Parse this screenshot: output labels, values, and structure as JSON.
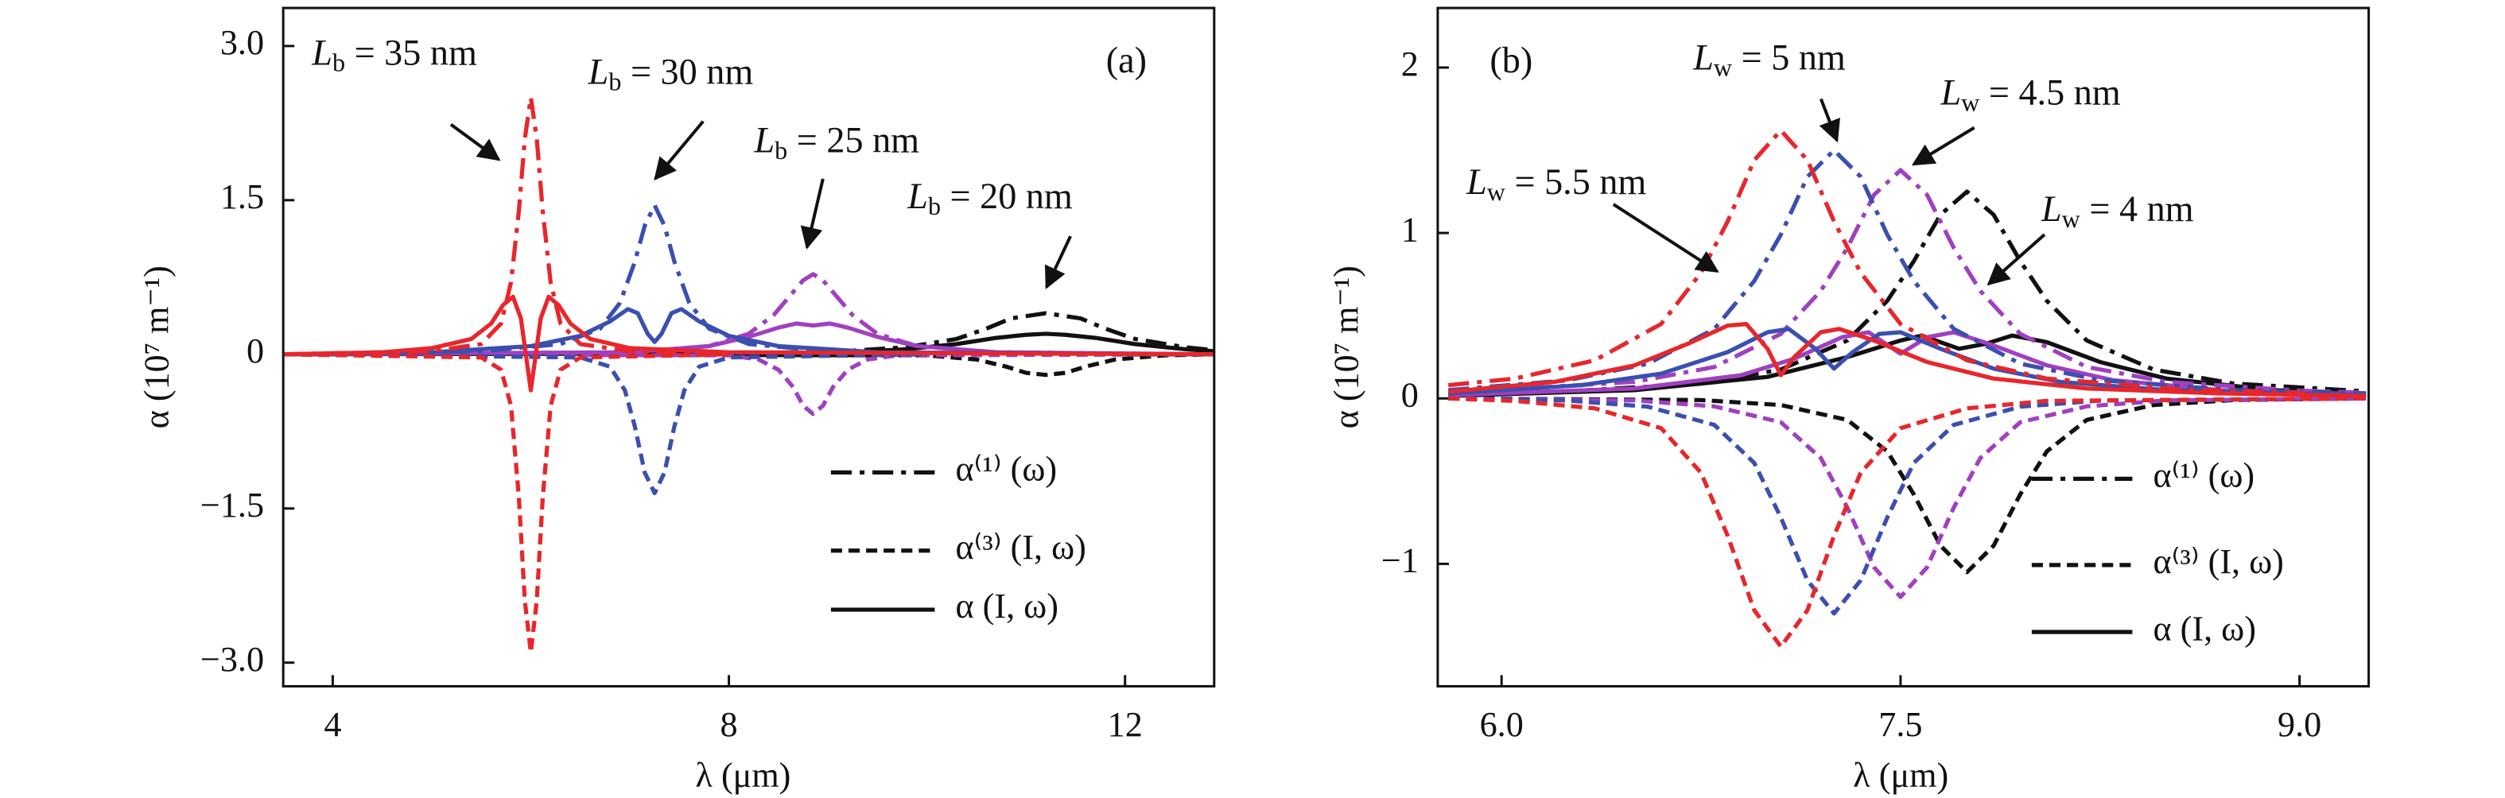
{
  "chart_data": [
    {
      "type": "line",
      "panel_label": "(a)",
      "xlabel": "λ (μm)",
      "ylabel": "α (10⁷ m⁻¹)",
      "xlim": [
        3.5,
        12.9
      ],
      "ylim": [
        -3.23,
        3.37
      ],
      "xticks": [
        4,
        8,
        12
      ],
      "yticks": [
        {
          "value": 3,
          "label": "3.0"
        },
        {
          "value": 1.5,
          "label": "1.5"
        },
        0,
        {
          "value": -1.5,
          "label": "−1.5"
        },
        {
          "value": -3,
          "label": "−3.0"
        }
      ],
      "legend": [
        {
          "label": "α⁽¹⁾ (ω)",
          "style": "dashdot"
        },
        {
          "label": "α⁽³⁾ (I, ω)",
          "style": "dashed"
        },
        {
          "label": "α (I, ω)",
          "style": "solid"
        }
      ],
      "annotations": [
        {
          "symbol": "L",
          "subscript": "b",
          "text": " = 35 nm"
        },
        {
          "symbol": "L",
          "subscript": "b",
          "text": " = 30 nm"
        },
        {
          "symbol": "L",
          "subscript": "b",
          "text": " = 25 nm"
        },
        {
          "symbol": "L",
          "subscript": "b",
          "text": " = 20 nm"
        }
      ],
      "series": [
        {
          "color": "#111111",
          "style": "dashdot",
          "x": [
            3.5,
            9.0,
            9.8,
            10.3,
            10.6,
            10.85,
            11.2,
            11.55,
            11.8,
            12.1,
            12.6,
            12.9
          ],
          "values": [
            0,
            0.02,
            0.07,
            0.15,
            0.25,
            0.35,
            0.4,
            0.35,
            0.25,
            0.15,
            0.07,
            0.04
          ]
        },
        {
          "color": "#111111",
          "style": "dashed",
          "x": [
            3.5,
            10.0,
            10.5,
            10.8,
            11.0,
            11.2,
            11.4,
            11.6,
            11.9,
            12.4,
            12.9
          ],
          "values": [
            0,
            -0.01,
            -0.05,
            -0.12,
            -0.18,
            -0.2,
            -0.18,
            -0.12,
            -0.05,
            -0.01,
            0
          ]
        },
        {
          "color": "#111111",
          "style": "solid",
          "x": [
            3.5,
            9.0,
            9.8,
            10.3,
            10.7,
            11.0,
            11.2,
            11.4,
            11.7,
            12.1,
            12.6,
            12.9
          ],
          "values": [
            0,
            0.01,
            0.05,
            0.1,
            0.16,
            0.19,
            0.2,
            0.19,
            0.16,
            0.1,
            0.05,
            0.03
          ]
        },
        {
          "color": "#a040c0",
          "style": "dashdot",
          "x": [
            3.5,
            7.0,
            7.8,
            8.2,
            8.45,
            8.6,
            8.75,
            8.85,
            8.95,
            9.1,
            9.25,
            9.5,
            9.9,
            10.7,
            12.9
          ],
          "values": [
            0,
            0.02,
            0.08,
            0.2,
            0.38,
            0.55,
            0.72,
            0.78,
            0.72,
            0.55,
            0.38,
            0.2,
            0.08,
            0.02,
            0
          ]
        },
        {
          "color": "#a040c0",
          "style": "dashed",
          "x": [
            3.5,
            8.0,
            8.3,
            8.5,
            8.65,
            8.75,
            8.85,
            8.95,
            9.05,
            9.2,
            9.4,
            9.7,
            12.9
          ],
          "values": [
            0,
            -0.01,
            -0.05,
            -0.15,
            -0.32,
            -0.5,
            -0.58,
            -0.5,
            -0.32,
            -0.15,
            -0.05,
            -0.01,
            0
          ]
        },
        {
          "color": "#a040c0",
          "style": "solid",
          "x": [
            3.5,
            7.0,
            7.8,
            8.2,
            8.5,
            8.68,
            8.85,
            9.02,
            9.2,
            9.5,
            9.9,
            10.7,
            12.9
          ],
          "values": [
            0,
            0.02,
            0.08,
            0.17,
            0.26,
            0.3,
            0.28,
            0.3,
            0.26,
            0.17,
            0.08,
            0.02,
            0
          ]
        },
        {
          "color": "#3a4fb0",
          "style": "dashdot",
          "x": [
            3.5,
            5.5,
            6.3,
            6.7,
            6.9,
            7.05,
            7.15,
            7.25,
            7.35,
            7.45,
            7.6,
            7.8,
            8.2,
            9.0,
            10.0
          ],
          "values": [
            0,
            0.03,
            0.1,
            0.25,
            0.5,
            0.9,
            1.25,
            1.45,
            1.25,
            0.9,
            0.5,
            0.25,
            0.1,
            0.03,
            0
          ]
        },
        {
          "color": "#3a4fb0",
          "style": "dashed",
          "x": [
            3.5,
            6.5,
            6.8,
            6.95,
            7.05,
            7.15,
            7.25,
            7.35,
            7.45,
            7.55,
            7.7,
            8.0,
            10.0
          ],
          "values": [
            0,
            -0.03,
            -0.12,
            -0.35,
            -0.7,
            -1.15,
            -1.35,
            -1.15,
            -0.7,
            -0.35,
            -0.12,
            -0.03,
            0
          ]
        },
        {
          "color": "#3a4fb0",
          "style": "solid",
          "x": [
            3.5,
            5.0,
            6.0,
            6.5,
            6.8,
            6.98,
            7.08,
            7.18,
            7.25,
            7.32,
            7.42,
            7.52,
            7.7,
            8.0,
            8.5,
            9.5,
            12.9
          ],
          "values": [
            0,
            0.02,
            0.08,
            0.18,
            0.32,
            0.44,
            0.4,
            0.2,
            0.12,
            0.2,
            0.4,
            0.44,
            0.32,
            0.18,
            0.08,
            0.02,
            0
          ]
        },
        {
          "color": "#e8262b",
          "style": "dashdot",
          "x": [
            3.5,
            5.0,
            5.5,
            5.7,
            5.8,
            5.88,
            5.94,
            6.0,
            6.06,
            6.12,
            6.2,
            6.3,
            6.5,
            7.0,
            8.0
          ],
          "values": [
            0,
            0.03,
            0.1,
            0.3,
            0.7,
            1.4,
            2.1,
            2.5,
            2.1,
            1.4,
            0.7,
            0.3,
            0.1,
            0.03,
            0
          ]
        },
        {
          "color": "#e8262b",
          "style": "dashed",
          "x": [
            3.5,
            5.5,
            5.7,
            5.8,
            5.88,
            5.94,
            6.0,
            6.06,
            6.12,
            6.2,
            6.3,
            6.5,
            8.0
          ],
          "values": [
            0,
            -0.03,
            -0.15,
            -0.5,
            -1.4,
            -2.4,
            -2.9,
            -2.4,
            -1.4,
            -0.5,
            -0.15,
            -0.03,
            0
          ]
        },
        {
          "color": "#e8262b",
          "style": "solid",
          "x": [
            3.5,
            4.5,
            5.0,
            5.4,
            5.6,
            5.72,
            5.82,
            5.9,
            5.95,
            6.0,
            6.05,
            6.1,
            6.18,
            6.28,
            6.4,
            6.6,
            7.0,
            8.0,
            12.9
          ],
          "values": [
            0,
            0.02,
            0.06,
            0.15,
            0.3,
            0.48,
            0.56,
            0.35,
            0,
            -0.35,
            0,
            0.35,
            0.56,
            0.48,
            0.3,
            0.15,
            0.06,
            0.02,
            0
          ]
        }
      ]
    },
    {
      "type": "line",
      "panel_label": "(b)",
      "xlabel": "λ (μm)",
      "ylabel": "α (10⁷ m⁻¹)",
      "xlim": [
        5.76,
        9.26
      ],
      "ylim": [
        -1.74,
        2.36
      ],
      "xticks": [
        {
          "value": 6,
          "label": "6.0"
        },
        {
          "value": 7.5,
          "label": "7.5"
        },
        {
          "value": 9,
          "label": "9.0"
        }
      ],
      "yticks": [
        2,
        1,
        0,
        {
          "value": -1,
          "label": "−1"
        }
      ],
      "legend": [
        {
          "label": "α⁽¹⁾ (ω)",
          "style": "dashdot"
        },
        {
          "label": "α⁽³⁾ (I, ω)",
          "style": "dashed"
        },
        {
          "label": "α (I, ω)",
          "style": "solid"
        }
      ],
      "annotations": [
        {
          "symbol": "L",
          "subscript": "w",
          "text": " = 5 nm"
        },
        {
          "symbol": "L",
          "subscript": "w",
          "text": " = 4.5 nm"
        },
        {
          "symbol": "L",
          "subscript": "w",
          "text": " = 5.5 nm"
        },
        {
          "symbol": "L",
          "subscript": "w",
          "text": " = 4 nm"
        }
      ],
      "series": [
        {
          "color": "#111111",
          "style": "dashdot",
          "x": [
            5.8,
            6.25,
            6.75,
            7.05,
            7.3,
            7.45,
            7.55,
            7.65,
            7.75,
            7.85,
            7.95,
            8.05,
            8.2,
            8.45,
            8.75,
            9.25
          ],
          "values": [
            0.025,
            0.043,
            0.09,
            0.175,
            0.35,
            0.59,
            0.83,
            1.11,
            1.25,
            1.11,
            0.83,
            0.59,
            0.35,
            0.175,
            0.09,
            0.043
          ]
        },
        {
          "color": "#111111",
          "style": "dashed",
          "x": [
            5.8,
            6.75,
            7.05,
            7.3,
            7.45,
            7.55,
            7.65,
            7.75,
            7.85,
            7.95,
            8.05,
            8.2,
            8.45,
            8.75,
            9.25
          ],
          "values": [
            0,
            -0.01,
            -0.04,
            -0.13,
            -0.32,
            -0.58,
            -0.89,
            -1.05,
            -0.89,
            -0.58,
            -0.32,
            -0.13,
            -0.04,
            -0.01,
            0
          ]
        },
        {
          "color": "#111111",
          "style": "solid",
          "x": [
            5.8,
            6.5,
            7.0,
            7.3,
            7.5,
            7.58,
            7.72,
            7.82,
            7.92,
            8.05,
            8.25,
            8.5,
            8.9,
            9.25
          ],
          "values": [
            0.015,
            0.05,
            0.13,
            0.25,
            0.35,
            0.38,
            0.3,
            0.33,
            0.38,
            0.34,
            0.22,
            0.12,
            0.05,
            0.03
          ]
        },
        {
          "color": "#a040c0",
          "style": "dashdot",
          "x": [
            5.8,
            6.5,
            6.8,
            7.05,
            7.2,
            7.3,
            7.4,
            7.5,
            7.6,
            7.7,
            7.8,
            7.95,
            8.2,
            8.5,
            9.0,
            9.25
          ],
          "values": [
            0.035,
            0.1,
            0.19,
            0.39,
            0.65,
            0.91,
            1.23,
            1.38,
            1.23,
            0.91,
            0.65,
            0.39,
            0.19,
            0.1,
            0.047,
            0.035
          ]
        },
        {
          "color": "#a040c0",
          "style": "dashed",
          "x": [
            5.8,
            6.5,
            6.8,
            7.05,
            7.2,
            7.3,
            7.4,
            7.5,
            7.6,
            7.7,
            7.8,
            7.95,
            8.2,
            8.5,
            9.25
          ],
          "values": [
            0,
            -0.012,
            -0.048,
            -0.144,
            -0.36,
            -0.66,
            -1.02,
            -1.2,
            -1.02,
            -0.66,
            -0.36,
            -0.144,
            -0.048,
            -0.012,
            0
          ]
        },
        {
          "color": "#a040c0",
          "style": "solid",
          "x": [
            5.8,
            6.5,
            6.9,
            7.1,
            7.28,
            7.38,
            7.5,
            7.6,
            7.7,
            7.85,
            8.05,
            8.3,
            8.7,
            9.25
          ],
          "values": [
            0.02,
            0.06,
            0.14,
            0.24,
            0.37,
            0.4,
            0.27,
            0.37,
            0.4,
            0.32,
            0.2,
            0.11,
            0.05,
            0.025
          ]
        },
        {
          "color": "#3a4fb0",
          "style": "dashdot",
          "x": [
            5.8,
            6.25,
            6.55,
            6.8,
            6.95,
            7.05,
            7.15,
            7.25,
            7.35,
            7.45,
            7.55,
            7.7,
            7.95,
            8.25,
            8.75,
            9.25
          ],
          "values": [
            0.05,
            0.11,
            0.21,
            0.42,
            0.71,
            0.99,
            1.34,
            1.5,
            1.34,
            0.99,
            0.71,
            0.42,
            0.21,
            0.11,
            0.05,
            0.03
          ]
        },
        {
          "color": "#3a4fb0",
          "style": "dashed",
          "x": [
            5.8,
            6.25,
            6.55,
            6.8,
            6.95,
            7.05,
            7.15,
            7.25,
            7.35,
            7.45,
            7.55,
            7.7,
            7.95,
            8.25,
            9.25
          ],
          "values": [
            0,
            -0.013,
            -0.05,
            -0.16,
            -0.39,
            -0.72,
            -1.1,
            -1.3,
            -1.1,
            -0.72,
            -0.39,
            -0.16,
            -0.05,
            -0.013,
            0
          ]
        },
        {
          "color": "#3a4fb0",
          "style": "solid",
          "x": [
            5.8,
            6.3,
            6.6,
            6.85,
            7.0,
            7.08,
            7.18,
            7.25,
            7.32,
            7.42,
            7.5,
            7.65,
            7.85,
            8.1,
            8.5,
            9.25
          ],
          "values": [
            0.03,
            0.08,
            0.15,
            0.28,
            0.4,
            0.42,
            0.3,
            0.18,
            0.28,
            0.39,
            0.4,
            0.3,
            0.18,
            0.1,
            0.05,
            0.02
          ]
        },
        {
          "color": "#e8262b",
          "style": "dashdot",
          "x": [
            5.8,
            6.05,
            6.35,
            6.6,
            6.75,
            6.85,
            6.95,
            7.05,
            7.15,
            7.25,
            7.35,
            7.5,
            7.75,
            8.05,
            8.55,
            9.05
          ],
          "values": [
            0.08,
            0.12,
            0.23,
            0.45,
            0.76,
            1.07,
            1.44,
            1.62,
            1.44,
            1.07,
            0.76,
            0.45,
            0.23,
            0.12,
            0.055,
            0.03
          ]
        },
        {
          "color": "#e8262b",
          "style": "dashed",
          "x": [
            5.8,
            6.05,
            6.35,
            6.6,
            6.75,
            6.85,
            6.95,
            7.05,
            7.15,
            7.25,
            7.35,
            7.5,
            7.75,
            8.05,
            9.25
          ],
          "values": [
            0,
            -0.015,
            -0.06,
            -0.18,
            -0.45,
            -0.83,
            -1.28,
            -1.5,
            -1.28,
            -0.83,
            -0.45,
            -0.18,
            -0.06,
            -0.015,
            0
          ]
        },
        {
          "color": "#e8262b",
          "style": "solid",
          "x": [
            5.8,
            6.2,
            6.5,
            6.7,
            6.85,
            6.92,
            7.0,
            7.05,
            7.1,
            7.2,
            7.27,
            7.4,
            7.6,
            7.85,
            8.2,
            8.7,
            9.25
          ],
          "values": [
            0.04,
            0.1,
            0.2,
            0.33,
            0.44,
            0.45,
            0.3,
            0.14,
            0.25,
            0.4,
            0.42,
            0.35,
            0.22,
            0.12,
            0.06,
            0.03,
            0.015
          ]
        }
      ]
    }
  ]
}
